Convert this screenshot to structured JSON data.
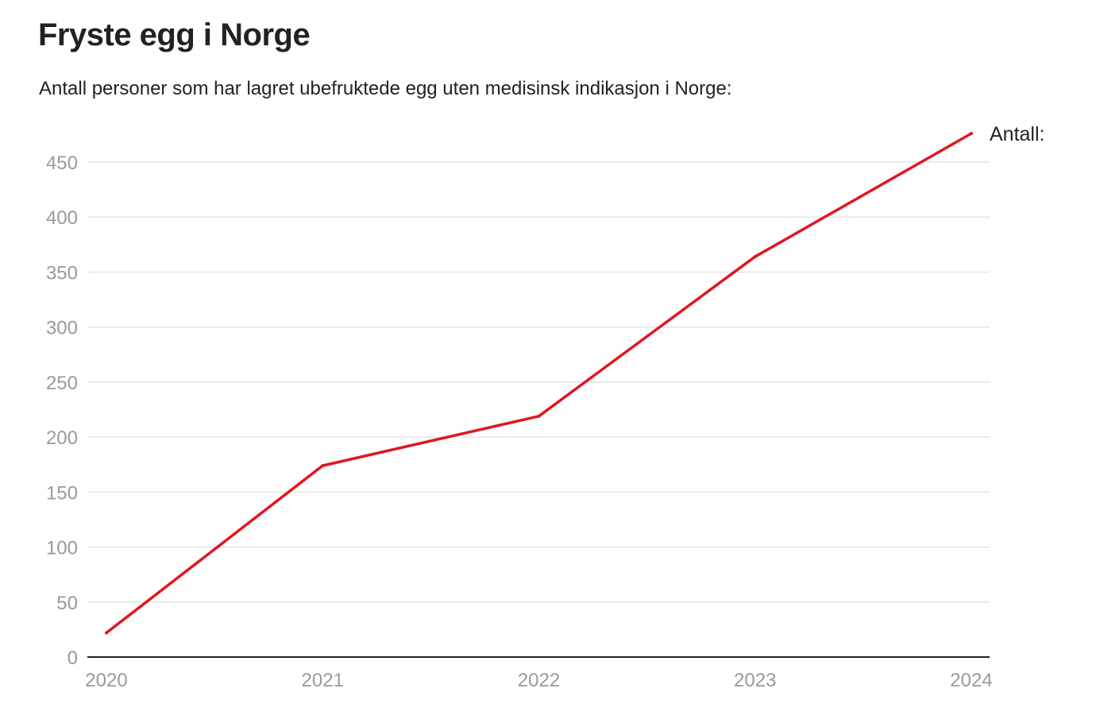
{
  "chart_data": {
    "type": "line",
    "title": "Fryste egg i Norge",
    "subtitle": "Antall personer som har lagret ubefruktede egg uten medisinsk indikasjon i Norge:",
    "xlabel": "",
    "ylabel": "",
    "categories": [
      "2020",
      "2021",
      "2022",
      "2023",
      "2024"
    ],
    "series": [
      {
        "name": "Antall:",
        "values": [
          22,
          174,
          219,
          364,
          476
        ],
        "color": "#e0171f"
      }
    ],
    "ylim": [
      0,
      476
    ],
    "yticks": [
      0,
      50,
      100,
      150,
      200,
      250,
      300,
      350,
      400,
      450
    ],
    "grid": true,
    "legend": "end-of-line"
  }
}
